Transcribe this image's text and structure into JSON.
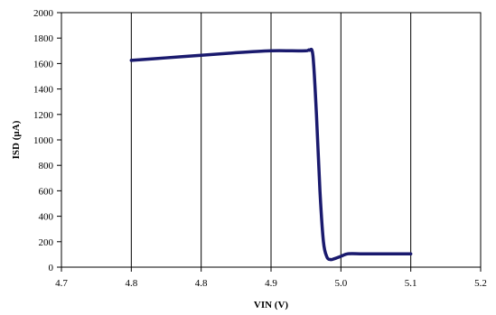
{
  "chart_data": {
    "type": "line",
    "xlabel": "VIN (V)",
    "ylabel": "ISD (µA)",
    "xlim": [
      4.65,
      5.25
    ],
    "ylim": [
      0,
      2000
    ],
    "x_ticks": [
      4.65,
      4.75,
      4.85,
      4.95,
      5.05,
      5.15,
      5.25
    ],
    "x_tick_labels": [
      "4.7",
      "4.8",
      "4.8",
      "4.9",
      "5.0",
      "5.1",
      "5.2"
    ],
    "y_ticks": [
      0,
      200,
      400,
      600,
      800,
      1000,
      1200,
      1400,
      1600,
      1800,
      2000
    ],
    "y_tick_labels": [
      "0",
      "200",
      "400",
      "600",
      "800",
      "1000",
      "1200",
      "1400",
      "1600",
      "1800",
      "2000"
    ],
    "x_grid": true,
    "y_grid": false,
    "legend": "none",
    "series": [
      {
        "color": "#1a1a6e",
        "x": [
          4.75,
          4.8,
          4.85,
          4.9,
          4.95,
          4.98,
          5.0,
          5.005,
          5.01,
          5.015,
          5.02,
          5.025,
          5.03,
          5.035,
          5.04,
          5.05,
          5.06,
          5.08,
          5.1,
          5.15
        ],
        "y": [
          1625,
          1645,
          1665,
          1685,
          1700,
          1700,
          1700,
          1705,
          1660,
          1200,
          600,
          200,
          80,
          60,
          65,
          85,
          105,
          105,
          105,
          105
        ]
      }
    ]
  }
}
